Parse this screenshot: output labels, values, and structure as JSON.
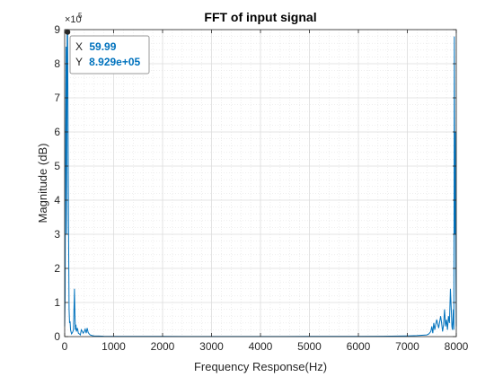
{
  "chart_data": {
    "type": "line",
    "title": "FFT of input signal",
    "xlabel": "Frequency Response(Hz)",
    "ylabel": "Magnitude (dB)",
    "xlim": [
      0,
      8000
    ],
    "ylim": [
      0,
      9
    ],
    "xticks": [
      0,
      1000,
      2000,
      3000,
      4000,
      5000,
      6000,
      7000,
      8000
    ],
    "yticks": [
      0,
      1,
      2,
      3,
      4,
      5,
      6,
      7,
      8,
      9
    ],
    "y_exponent_label": "×10",
    "y_exponent_power": "5",
    "y_scale_factor": 100000,
    "grid": true,
    "minor_grid": true,
    "series_color": "#0072BD",
    "series": [
      {
        "x": [
          0,
          10,
          20,
          30,
          40,
          50,
          59.99,
          70,
          80,
          90,
          100,
          110,
          120,
          140,
          160,
          180,
          200,
          210,
          220,
          230,
          240,
          250,
          260,
          280,
          300,
          320,
          340,
          360,
          380,
          400,
          420,
          440,
          460,
          480,
          500,
          520,
          560,
          600,
          700,
          800,
          1000,
          1500,
          2000,
          2500,
          3000,
          3500,
          4000,
          4500,
          5000,
          5500,
          6000,
          6500,
          7000,
          7200,
          7400,
          7440,
          7480,
          7500,
          7520,
          7540,
          7560,
          7600,
          7640,
          7680,
          7700,
          7720,
          7740,
          7760,
          7780,
          7800,
          7820,
          7840,
          7860,
          7880,
          7900,
          7910,
          7920,
          7930,
          7940,
          7950,
          7960,
          7970,
          7980,
          7990,
          8000
        ],
        "y": [
          30000,
          120000,
          600000,
          850000,
          300000,
          900000,
          892900,
          600000,
          300000,
          80000,
          40000,
          45000,
          20000,
          8000,
          12000,
          20000,
          140000,
          60000,
          20000,
          35000,
          15000,
          20000,
          25000,
          10000,
          8000,
          5000,
          20000,
          15000,
          10000,
          15000,
          22000,
          10000,
          25000,
          12000,
          8000,
          5000,
          3000,
          2000,
          1500,
          1000,
          800,
          500,
          500,
          400,
          400,
          400,
          400,
          400,
          500,
          500,
          800,
          1000,
          2000,
          3000,
          5000,
          8000,
          15000,
          30000,
          10000,
          40000,
          20000,
          50000,
          25000,
          60000,
          40000,
          15000,
          35000,
          80000,
          30000,
          50000,
          20000,
          60000,
          40000,
          140000,
          70000,
          30000,
          20000,
          45000,
          80000,
          20000,
          880000,
          300000,
          600000,
          200000,
          30000
        ]
      }
    ]
  },
  "datatip": {
    "x_label": "X",
    "x_value": "59.99",
    "y_label": "Y",
    "y_value": "8.929e+05",
    "x": 59.99,
    "y": 892900
  }
}
